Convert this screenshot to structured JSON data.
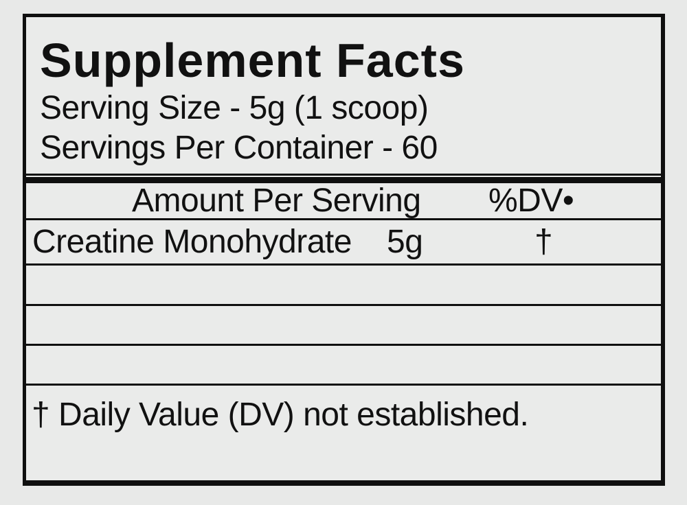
{
  "label": {
    "title": "Supplement Facts",
    "serving_size": "Serving Size - 5g (1 scoop)",
    "servings_per_container": "Servings Per Container - 60",
    "table_header": {
      "amount_per_serving": "Amount Per Serving",
      "percent_dv": "%DV•"
    },
    "nutrients": [
      {
        "name": "Creatine Monohydrate",
        "amount": "5g",
        "dv": "†"
      }
    ],
    "empty_row_count": 3,
    "footnote": "† Daily Value (DV) not established.",
    "colors": {
      "background": "#e8e9e8",
      "panel_background": "#eaebea",
      "ink": "#111111",
      "rule": "#0f0f0f"
    }
  }
}
